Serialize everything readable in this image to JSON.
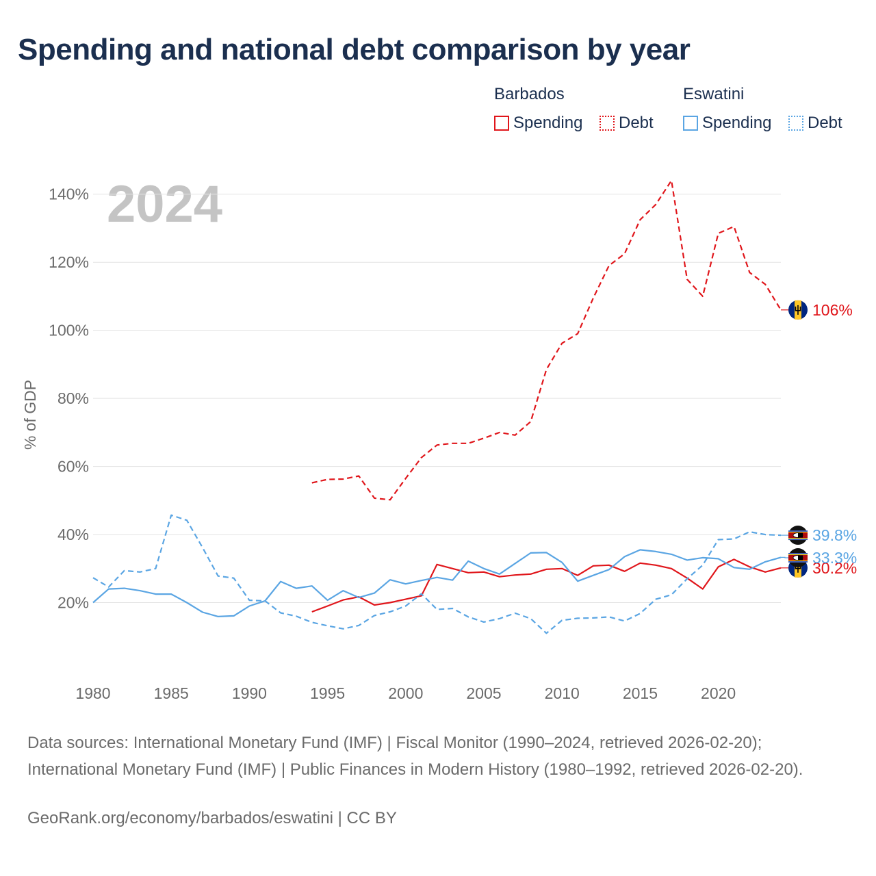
{
  "title": "Spending and national debt comparison by year",
  "legend": {
    "groups": [
      {
        "name": "Barbados",
        "color": "#e0161b",
        "items": [
          {
            "label": "Spending",
            "style": "solid"
          },
          {
            "label": "Debt",
            "style": "dotted"
          }
        ]
      },
      {
        "name": "Eswatini",
        "color": "#5aa5e3",
        "items": [
          {
            "label": "Spending",
            "style": "solid"
          },
          {
            "label": "Debt",
            "style": "dotted"
          }
        ]
      }
    ]
  },
  "year_label": "2024",
  "sources": "Data sources: International Monetary Fund (IMF) | Fiscal Monitor (1990–2024, retrieved 2026-02-20); International Monetary Fund (IMF) | Public Finances in Modern History (1980–1992, retrieved 2026-02-20).",
  "credit": "GeoRank.org/economy/barbados/eswatini | CC BY",
  "colors": {
    "barbados": "#e0161b",
    "eswatini": "#5aa5e3",
    "grid": "#e3e3e3",
    "axis_text": "#6b6b6b",
    "year_label": "#c4c4c4"
  },
  "chart_data": {
    "type": "line",
    "title": "Spending and national debt comparison by year",
    "xlabel": "",
    "ylabel": "% of GDP",
    "xlim": [
      1980,
      2024
    ],
    "ylim": [
      0,
      150
    ],
    "x_ticks": [
      1980,
      1985,
      1990,
      1995,
      2000,
      2005,
      2010,
      2015,
      2020
    ],
    "y_ticks": [
      {
        "value": 20,
        "label": "20%"
      },
      {
        "value": 40,
        "label": "40%"
      },
      {
        "value": 60,
        "label": "60%"
      },
      {
        "value": 80,
        "label": "80%"
      },
      {
        "value": 100,
        "label": "100%"
      },
      {
        "value": 120,
        "label": "120%"
      },
      {
        "value": 140,
        "label": "140%"
      }
    ],
    "grid": true,
    "series": [
      {
        "name": "Barbados Debt",
        "country": "barbados",
        "style": "dashed",
        "end_label": "106%",
        "x": [
          1994,
          1995,
          1996,
          1997,
          1998,
          1999,
          2000,
          2001,
          2002,
          2003,
          2004,
          2005,
          2006,
          2007,
          2008,
          2009,
          2010,
          2011,
          2012,
          2013,
          2014,
          2015,
          2016,
          2017,
          2018,
          2019,
          2020,
          2021,
          2022,
          2023,
          2024
        ],
        "values": [
          55.2,
          56.2,
          56.3,
          57.2,
          50.7,
          50.2,
          56.5,
          62.6,
          66.3,
          66.8,
          66.8,
          68.3,
          70.0,
          69.2,
          73.2,
          88.5,
          96.2,
          99.0,
          109.5,
          119.0,
          122.5,
          132.5,
          137.0,
          144.0,
          115.0,
          110.0,
          128.5,
          130.5,
          117.0,
          113.5,
          106.0
        ]
      },
      {
        "name": "Barbados Spending",
        "country": "barbados",
        "style": "solid",
        "end_label": "30.2%",
        "x": [
          1994,
          1995,
          1996,
          1997,
          1998,
          1999,
          2000,
          2001,
          2002,
          2003,
          2004,
          2005,
          2006,
          2007,
          2008,
          2009,
          2010,
          2011,
          2012,
          2013,
          2014,
          2015,
          2016,
          2017,
          2018,
          2019,
          2020,
          2021,
          2022,
          2023,
          2024
        ],
        "values": [
          17.3,
          19.0,
          20.8,
          21.7,
          19.3,
          20.0,
          21.0,
          22.0,
          31.2,
          30.0,
          28.8,
          29.0,
          27.6,
          28.1,
          28.4,
          29.8,
          30.0,
          28.0,
          30.8,
          31.0,
          29.2,
          31.6,
          31.0,
          30.0,
          27.2,
          24.0,
          30.5,
          32.7,
          30.5,
          29.0,
          30.2
        ]
      },
      {
        "name": "Eswatini Debt",
        "country": "eswatini",
        "style": "dashed",
        "end_label": "39.8%",
        "x": [
          1980,
          1981,
          1982,
          1983,
          1984,
          1985,
          1986,
          1987,
          1988,
          1989,
          1990,
          1991,
          1992,
          1993,
          1994,
          1995,
          1996,
          1997,
          1998,
          1999,
          2000,
          2001,
          2002,
          2003,
          2004,
          2005,
          2006,
          2007,
          2008,
          2009,
          2010,
          2011,
          2012,
          2013,
          2014,
          2015,
          2016,
          2017,
          2018,
          2019,
          2020,
          2021,
          2022,
          2023,
          2024
        ],
        "values": [
          27.3,
          24.6,
          29.4,
          29.0,
          30.0,
          45.7,
          44.2,
          36.2,
          27.8,
          27.2,
          20.7,
          20.5,
          17.0,
          16.0,
          14.2,
          13.2,
          12.3,
          13.3,
          16.2,
          17.3,
          19.0,
          22.6,
          18.0,
          18.3,
          15.8,
          14.3,
          15.3,
          16.9,
          15.3,
          11.0,
          14.8,
          15.4,
          15.5,
          15.8,
          14.6,
          16.8,
          21.0,
          22.3,
          27.0,
          31.0,
          38.5,
          38.7,
          40.8,
          40.0,
          39.8
        ]
      },
      {
        "name": "Eswatini Spending",
        "country": "eswatini",
        "style": "solid",
        "end_label": "33.3%",
        "x": [
          1980,
          1981,
          1982,
          1983,
          1984,
          1985,
          1986,
          1987,
          1988,
          1989,
          1990,
          1991,
          1992,
          1993,
          1994,
          1995,
          1996,
          1997,
          1998,
          1999,
          2000,
          2001,
          2002,
          2003,
          2004,
          2005,
          2006,
          2007,
          2008,
          2009,
          2010,
          2011,
          2012,
          2013,
          2014,
          2015,
          2016,
          2017,
          2018,
          2019,
          2020,
          2021,
          2022,
          2023,
          2024
        ],
        "values": [
          20.0,
          24.0,
          24.2,
          23.5,
          22.5,
          22.5,
          20.0,
          17.2,
          15.9,
          16.1,
          19.0,
          20.5,
          26.2,
          24.2,
          24.9,
          20.7,
          23.5,
          21.5,
          22.8,
          26.7,
          25.5,
          26.5,
          27.4,
          26.6,
          32.2,
          30.0,
          28.4,
          31.5,
          34.6,
          34.7,
          31.8,
          26.3,
          28.0,
          29.7,
          33.5,
          35.5,
          35.0,
          34.2,
          32.5,
          33.2,
          32.9,
          30.3,
          29.8,
          32.0,
          33.3
        ]
      }
    ]
  }
}
